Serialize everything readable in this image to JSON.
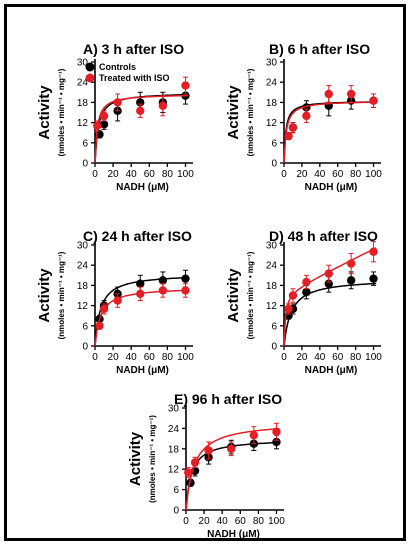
{
  "figure": {
    "colors": {
      "controls": "#000000",
      "treated": "#e31e24",
      "axis": "#000000",
      "background": "#ffffff"
    }
  },
  "chart_data": [
    {
      "type": "scatter",
      "title": "A) 3 h after ISO",
      "xlabel": "NADH (μM)",
      "ylabel": "Activity",
      "ylabel_sub": "(nmoles • min⁻¹ • mg⁻¹)",
      "xticks": [
        0,
        20,
        40,
        60,
        80,
        100
      ],
      "yticks": [
        0,
        6,
        12,
        18,
        24,
        30
      ],
      "xlim": [
        0,
        105
      ],
      "ylim": [
        0,
        30
      ],
      "legend": {
        "placement": "top-left"
      },
      "series": [
        {
          "name": "Controls",
          "color": "#000000",
          "x": [
            5,
            10,
            25,
            50,
            75,
            100
          ],
          "y": [
            8.5,
            11.5,
            15.5,
            18,
            18,
            20
          ],
          "err": [
            1,
            1.5,
            3,
            3,
            3,
            2.5
          ],
          "fit": {
            "vmax": 21,
            "km": 3.5
          }
        },
        {
          "name": "Treated with ISO",
          "color": "#e31e24",
          "x": [
            2.5,
            10,
            25,
            50,
            75,
            100
          ],
          "y": [
            11,
            14,
            18,
            15.5,
            17,
            23
          ],
          "err": [
            1.5,
            1.5,
            2.5,
            2,
            3,
            2.5
          ],
          "fit": {
            "vmax": 20.5,
            "km": 2.5
          }
        }
      ]
    },
    {
      "type": "scatter",
      "title": "B) 6 h after ISO",
      "xlabel": "NADH (μM)",
      "ylabel": "Activity",
      "ylabel_sub": "(nmoles • min⁻¹ • mg⁻¹)",
      "xticks": [
        0,
        20,
        40,
        60,
        80,
        100
      ],
      "yticks": [
        0,
        6,
        12,
        18,
        24,
        30
      ],
      "xlim": [
        0,
        105
      ],
      "ylim": [
        0,
        30
      ],
      "series": [
        {
          "name": "Controls",
          "color": "#000000",
          "x": [
            5,
            10,
            25,
            50,
            75,
            100
          ],
          "y": [
            8,
            10.5,
            16.5,
            17,
            18.5,
            18.5
          ],
          "err": [
            1,
            1.5,
            2,
            3,
            2.5,
            2
          ],
          "fit": {
            "vmax": 18.5,
            "km": 2
          }
        },
        {
          "name": "Treated with ISO",
          "color": "#e31e24",
          "x": [
            5,
            10,
            25,
            50,
            75,
            100
          ],
          "y": [
            8,
            10.5,
            14,
            20.5,
            20.5,
            18.5
          ],
          "err": [
            1,
            1.5,
            2,
            2.5,
            2.5,
            2
          ],
          "fit": {
            "vmax": 18.5,
            "km": 2.5
          }
        }
      ]
    },
    {
      "type": "scatter",
      "title": "C) 24 h after ISO",
      "xlabel": "NADH (μM)",
      "ylabel": "Activity",
      "ylabel_sub": "(nmoles • min⁻¹ • mg⁻¹)",
      "xticks": [
        0,
        20,
        40,
        60,
        80,
        100
      ],
      "yticks": [
        0,
        6,
        12,
        18,
        24,
        30
      ],
      "xlim": [
        0,
        105
      ],
      "ylim": [
        0,
        30
      ],
      "series": [
        {
          "name": "Controls",
          "color": "#000000",
          "x": [
            5,
            10,
            25,
            50,
            75,
            100
          ],
          "y": [
            8,
            12,
            15.5,
            18.5,
            19.5,
            20
          ],
          "err": [
            1,
            1.5,
            2,
            2.5,
            2.5,
            2.5
          ],
          "fit": {
            "vmax": 21.5,
            "km": 6
          }
        },
        {
          "name": "Treated with ISO",
          "color": "#e31e24",
          "x": [
            5,
            10,
            25,
            50,
            75,
            100
          ],
          "y": [
            6,
            11,
            13.5,
            15.5,
            16.5,
            16.5
          ],
          "err": [
            1,
            1.5,
            2,
            2,
            2,
            2
          ],
          "fit": {
            "vmax": 17.5,
            "km": 6
          }
        }
      ]
    },
    {
      "type": "scatter",
      "title": "D) 48 h after ISO",
      "xlabel": "NADH (μM)",
      "ylabel": "Activity",
      "ylabel_sub": "(nmoles • min⁻¹ • mg⁻¹)",
      "xticks": [
        0,
        20,
        40,
        60,
        80,
        100
      ],
      "yticks": [
        0,
        6,
        12,
        18,
        24,
        30
      ],
      "xlim": [
        0,
        105
      ],
      "ylim": [
        0,
        30
      ],
      "series": [
        {
          "name": "Controls",
          "color": "#000000",
          "x": [
            5,
            10,
            25,
            50,
            75,
            100
          ],
          "y": [
            9,
            11,
            16,
            18.5,
            19.5,
            20
          ],
          "err": [
            1,
            1.5,
            2,
            2.5,
            2.5,
            2
          ],
          "fit": {
            "vmax": 20,
            "km": 8
          }
        },
        {
          "name": "Treated with ISO",
          "color": "#e31e24",
          "x": [
            5,
            10,
            25,
            50,
            75,
            100
          ],
          "y": [
            11,
            15,
            19,
            21.5,
            24.5,
            28
          ],
          "err": [
            1.5,
            2,
            2,
            2.5,
            3,
            3
          ],
          "fit": {
            "vmax": 16,
            "km": 1.5,
            "slope": 0.13
          }
        }
      ]
    },
    {
      "type": "scatter",
      "title": "E) 96 h after ISO",
      "xlabel": "NADH (μM)",
      "ylabel": "Activity",
      "ylabel_sub": "(nmoles • min⁻¹ • mg⁻¹)",
      "xticks": [
        0,
        20,
        40,
        60,
        80,
        100
      ],
      "yticks": [
        0,
        6,
        12,
        18,
        24,
        30
      ],
      "xlim": [
        0,
        105
      ],
      "ylim": [
        0,
        30
      ],
      "series": [
        {
          "name": "Controls",
          "color": "#000000",
          "x": [
            5,
            10,
            25,
            50,
            75,
            100
          ],
          "y": [
            8,
            11.5,
            15.5,
            18.5,
            19.5,
            20
          ],
          "err": [
            1,
            1.5,
            2,
            2,
            2,
            2
          ],
          "fit": {
            "vmax": 21,
            "km": 6
          }
        },
        {
          "name": "Treated with ISO",
          "color": "#e31e24",
          "x": [
            2.5,
            10,
            25,
            50,
            75,
            100
          ],
          "y": [
            11,
            14,
            17.5,
            18,
            22,
            23
          ],
          "err": [
            1.5,
            1.5,
            2.5,
            2,
            2.5,
            2.5
          ],
          "fit": {
            "vmax": 26,
            "km": 9
          }
        }
      ]
    }
  ]
}
